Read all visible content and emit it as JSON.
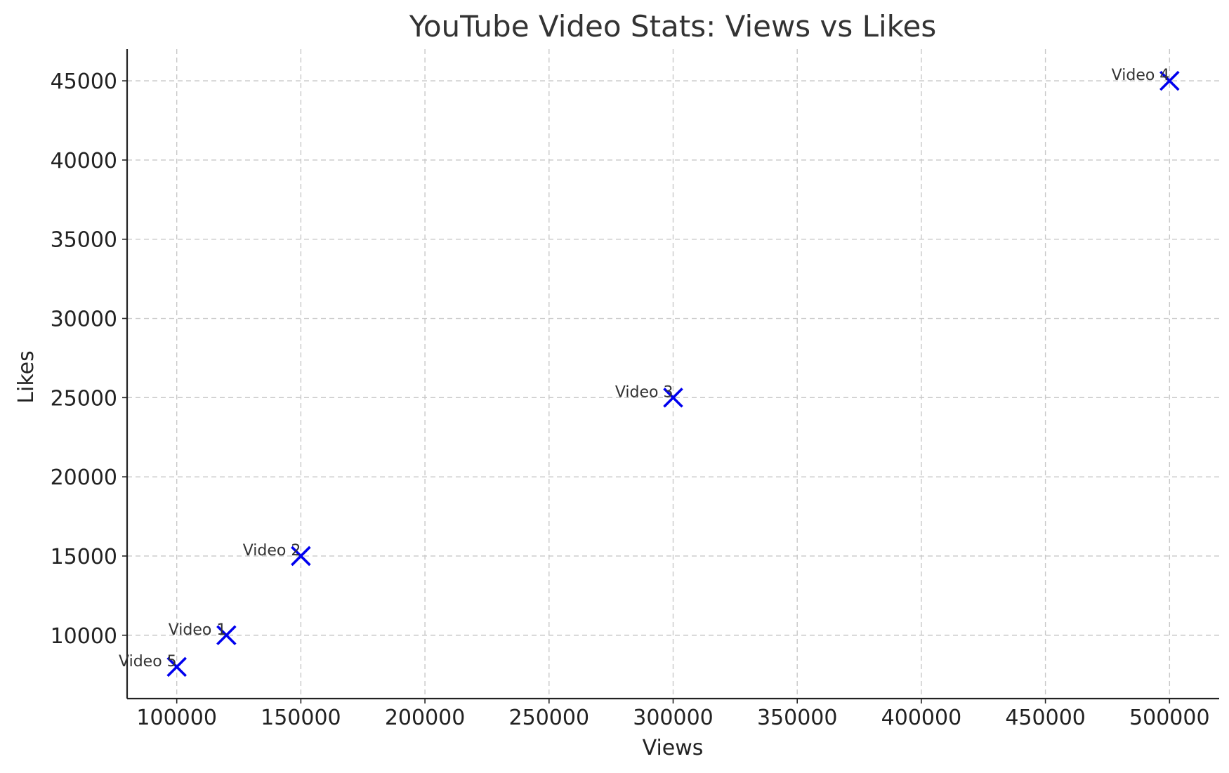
{
  "chart_data": {
    "type": "scatter",
    "title": "YouTube Video Stats: Views vs Likes",
    "xlabel": "Views",
    "ylabel": "Likes",
    "xlim": [
      80000,
      520000
    ],
    "ylim": [
      6000,
      47000
    ],
    "x_ticks": [
      100000,
      150000,
      200000,
      250000,
      300000,
      350000,
      400000,
      450000,
      500000
    ],
    "y_ticks": [
      10000,
      15000,
      20000,
      25000,
      30000,
      35000,
      40000,
      45000
    ],
    "grid": true,
    "marker": "x",
    "marker_color": "#0000ee",
    "points": [
      {
        "label": "Video 1",
        "x": 120000,
        "y": 10000
      },
      {
        "label": "Video 2",
        "x": 150000,
        "y": 15000
      },
      {
        "label": "Video 3",
        "x": 300000,
        "y": 25000
      },
      {
        "label": "Video 4",
        "x": 500000,
        "y": 45000
      },
      {
        "label": "Video 5",
        "x": 100000,
        "y": 8000
      }
    ]
  }
}
